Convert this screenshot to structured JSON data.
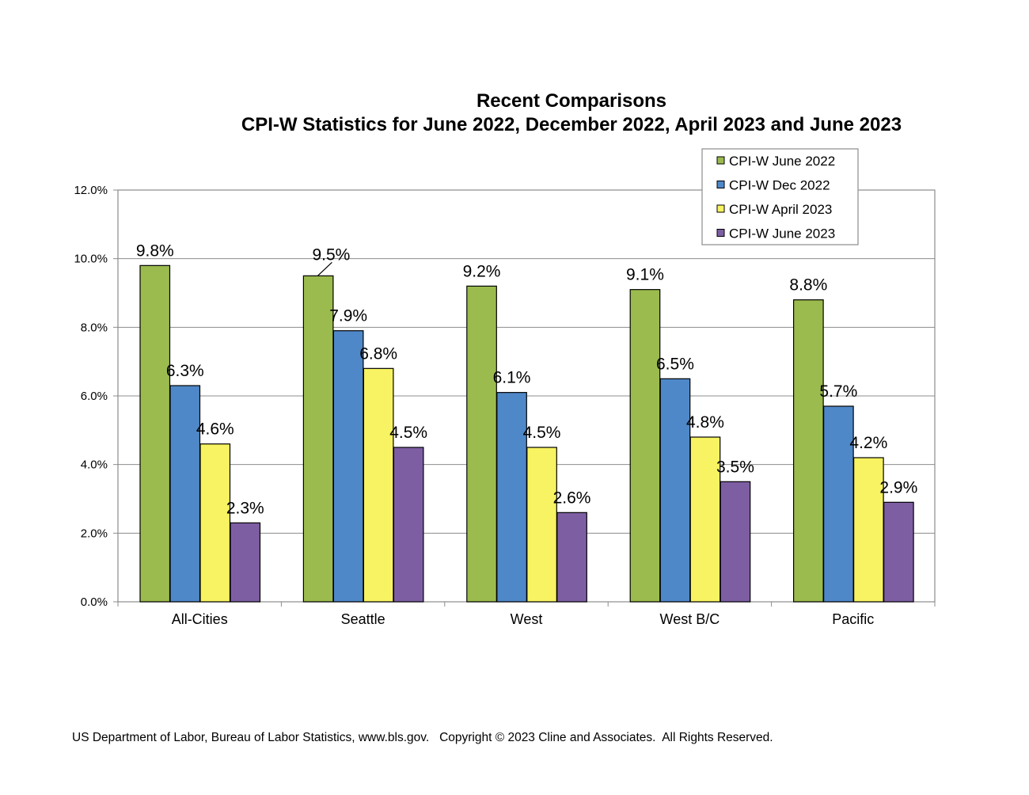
{
  "chart_data": {
    "type": "bar",
    "title": "Recent Comparisons",
    "subtitle": "CPI-W Statistics for June 2022, December 2022, April 2023 and June 2023",
    "categories": [
      "All-Cities",
      "Seattle",
      "West",
      "West B/C",
      "Pacific"
    ],
    "series": [
      {
        "name": "CPI-W June 2022",
        "color": "#9bbb4e",
        "values": [
          9.8,
          9.5,
          9.2,
          9.1,
          8.8
        ]
      },
      {
        "name": "CPI-W Dec 2022",
        "color": "#4f88c8",
        "values": [
          6.3,
          7.9,
          6.1,
          6.5,
          5.7
        ]
      },
      {
        "name": "CPI-W April 2023",
        "color": "#f7f362",
        "values": [
          4.6,
          6.8,
          4.5,
          4.8,
          4.2
        ]
      },
      {
        "name": "CPI-W June 2023",
        "color": "#7e5ea3",
        "values": [
          2.3,
          4.5,
          2.6,
          3.5,
          2.9
        ]
      }
    ],
    "data_labels": [
      [
        "9.8%",
        "9.5%",
        "9.2%",
        "9.1%",
        "8.8%"
      ],
      [
        "6.3%",
        "7.9%",
        "6.1%",
        "6.5%",
        "5.7%"
      ],
      [
        "4.6%",
        "6.8%",
        "4.5%",
        "4.8%",
        "4.2%"
      ],
      [
        "2.3%",
        "4.5%",
        "2.6%",
        "3.5%",
        "2.9%"
      ]
    ],
    "yticks": [
      "0.0%",
      "2.0%",
      "4.0%",
      "6.0%",
      "8.0%",
      "10.0%",
      "12.0%"
    ],
    "ylim": [
      0,
      12
    ],
    "grid": true,
    "legend_position": "top-right"
  },
  "footer": "US Department of Labor, Bureau of Labor Statistics, www.bls.gov.   Copyright © 2023 Cline and Associates.  All Rights Reserved."
}
